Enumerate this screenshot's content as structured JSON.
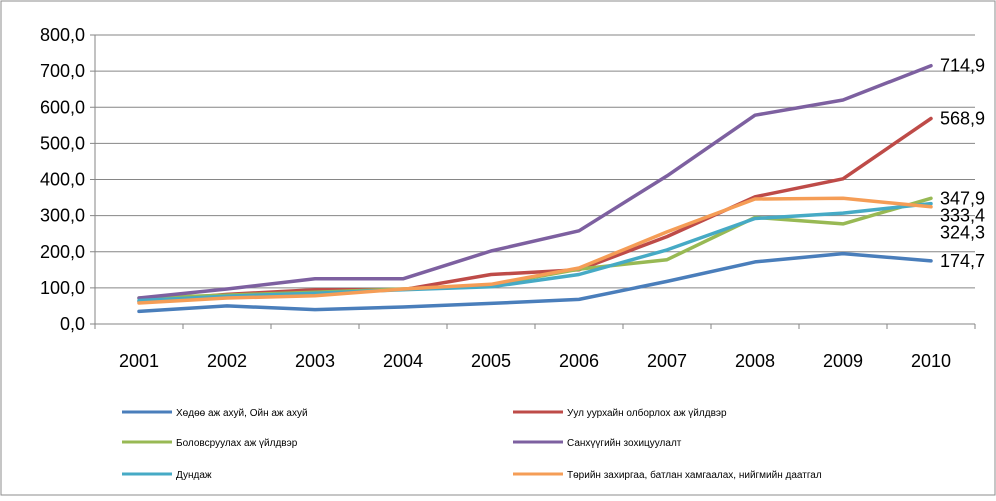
{
  "chart_data": {
    "type": "line",
    "title": "",
    "xlabel": "",
    "ylabel": "",
    "categories": [
      "2001",
      "2002",
      "2003",
      "2004",
      "2005",
      "2006",
      "2007",
      "2008",
      "2009",
      "2010"
    ],
    "ylim": [
      0,
      800
    ],
    "yticks": [
      0,
      100,
      200,
      300,
      400,
      500,
      600,
      700,
      800
    ],
    "ytick_labels": [
      "0,0",
      "100,0",
      "200,0",
      "300,0",
      "400,0",
      "500,0",
      "600,0",
      "700,0",
      "800,0"
    ],
    "grid": "horizontal",
    "legend_position": "bottom",
    "series": [
      {
        "name": "Хөдөө аж ахуй, Ойн аж ахуй",
        "color": "#4a7ebb",
        "values": [
          35,
          50,
          40,
          47,
          57,
          68,
          118,
          172,
          195,
          174.7
        ],
        "end_label": "174,7"
      },
      {
        "name": "Уул уурхайн олборлох аж үйлдвэр",
        "color": "#be4b48",
        "values": [
          62,
          82,
          95,
          95,
          137,
          150,
          242,
          352,
          402,
          568.9
        ],
        "end_label": "568,9"
      },
      {
        "name": "Боловсруулах аж үйлдвэр",
        "color": "#98b954",
        "values": [
          72,
          80,
          88,
          97,
          108,
          152,
          178,
          295,
          277,
          347.9
        ],
        "end_label": "347,9"
      },
      {
        "name": "Санхүүгийн зохицуулалт",
        "color": "#7d60a0",
        "values": [
          72,
          97,
          125,
          125,
          202,
          258,
          410,
          578,
          620,
          714.9
        ],
        "end_label": "714,9"
      },
      {
        "name": "Дундаж",
        "color": "#46aac5",
        "values": [
          65,
          77,
          85,
          95,
          103,
          137,
          205,
          292,
          307,
          333.4
        ],
        "end_label": "333,4"
      },
      {
        "name": "Төрийн захиргаа, батлан хамгаалах, нийгмийн даатгал",
        "color": "#f59d56",
        "values": [
          58,
          72,
          78,
          97,
          110,
          155,
          255,
          346,
          348,
          324.3
        ],
        "end_label": "324,3"
      }
    ]
  }
}
